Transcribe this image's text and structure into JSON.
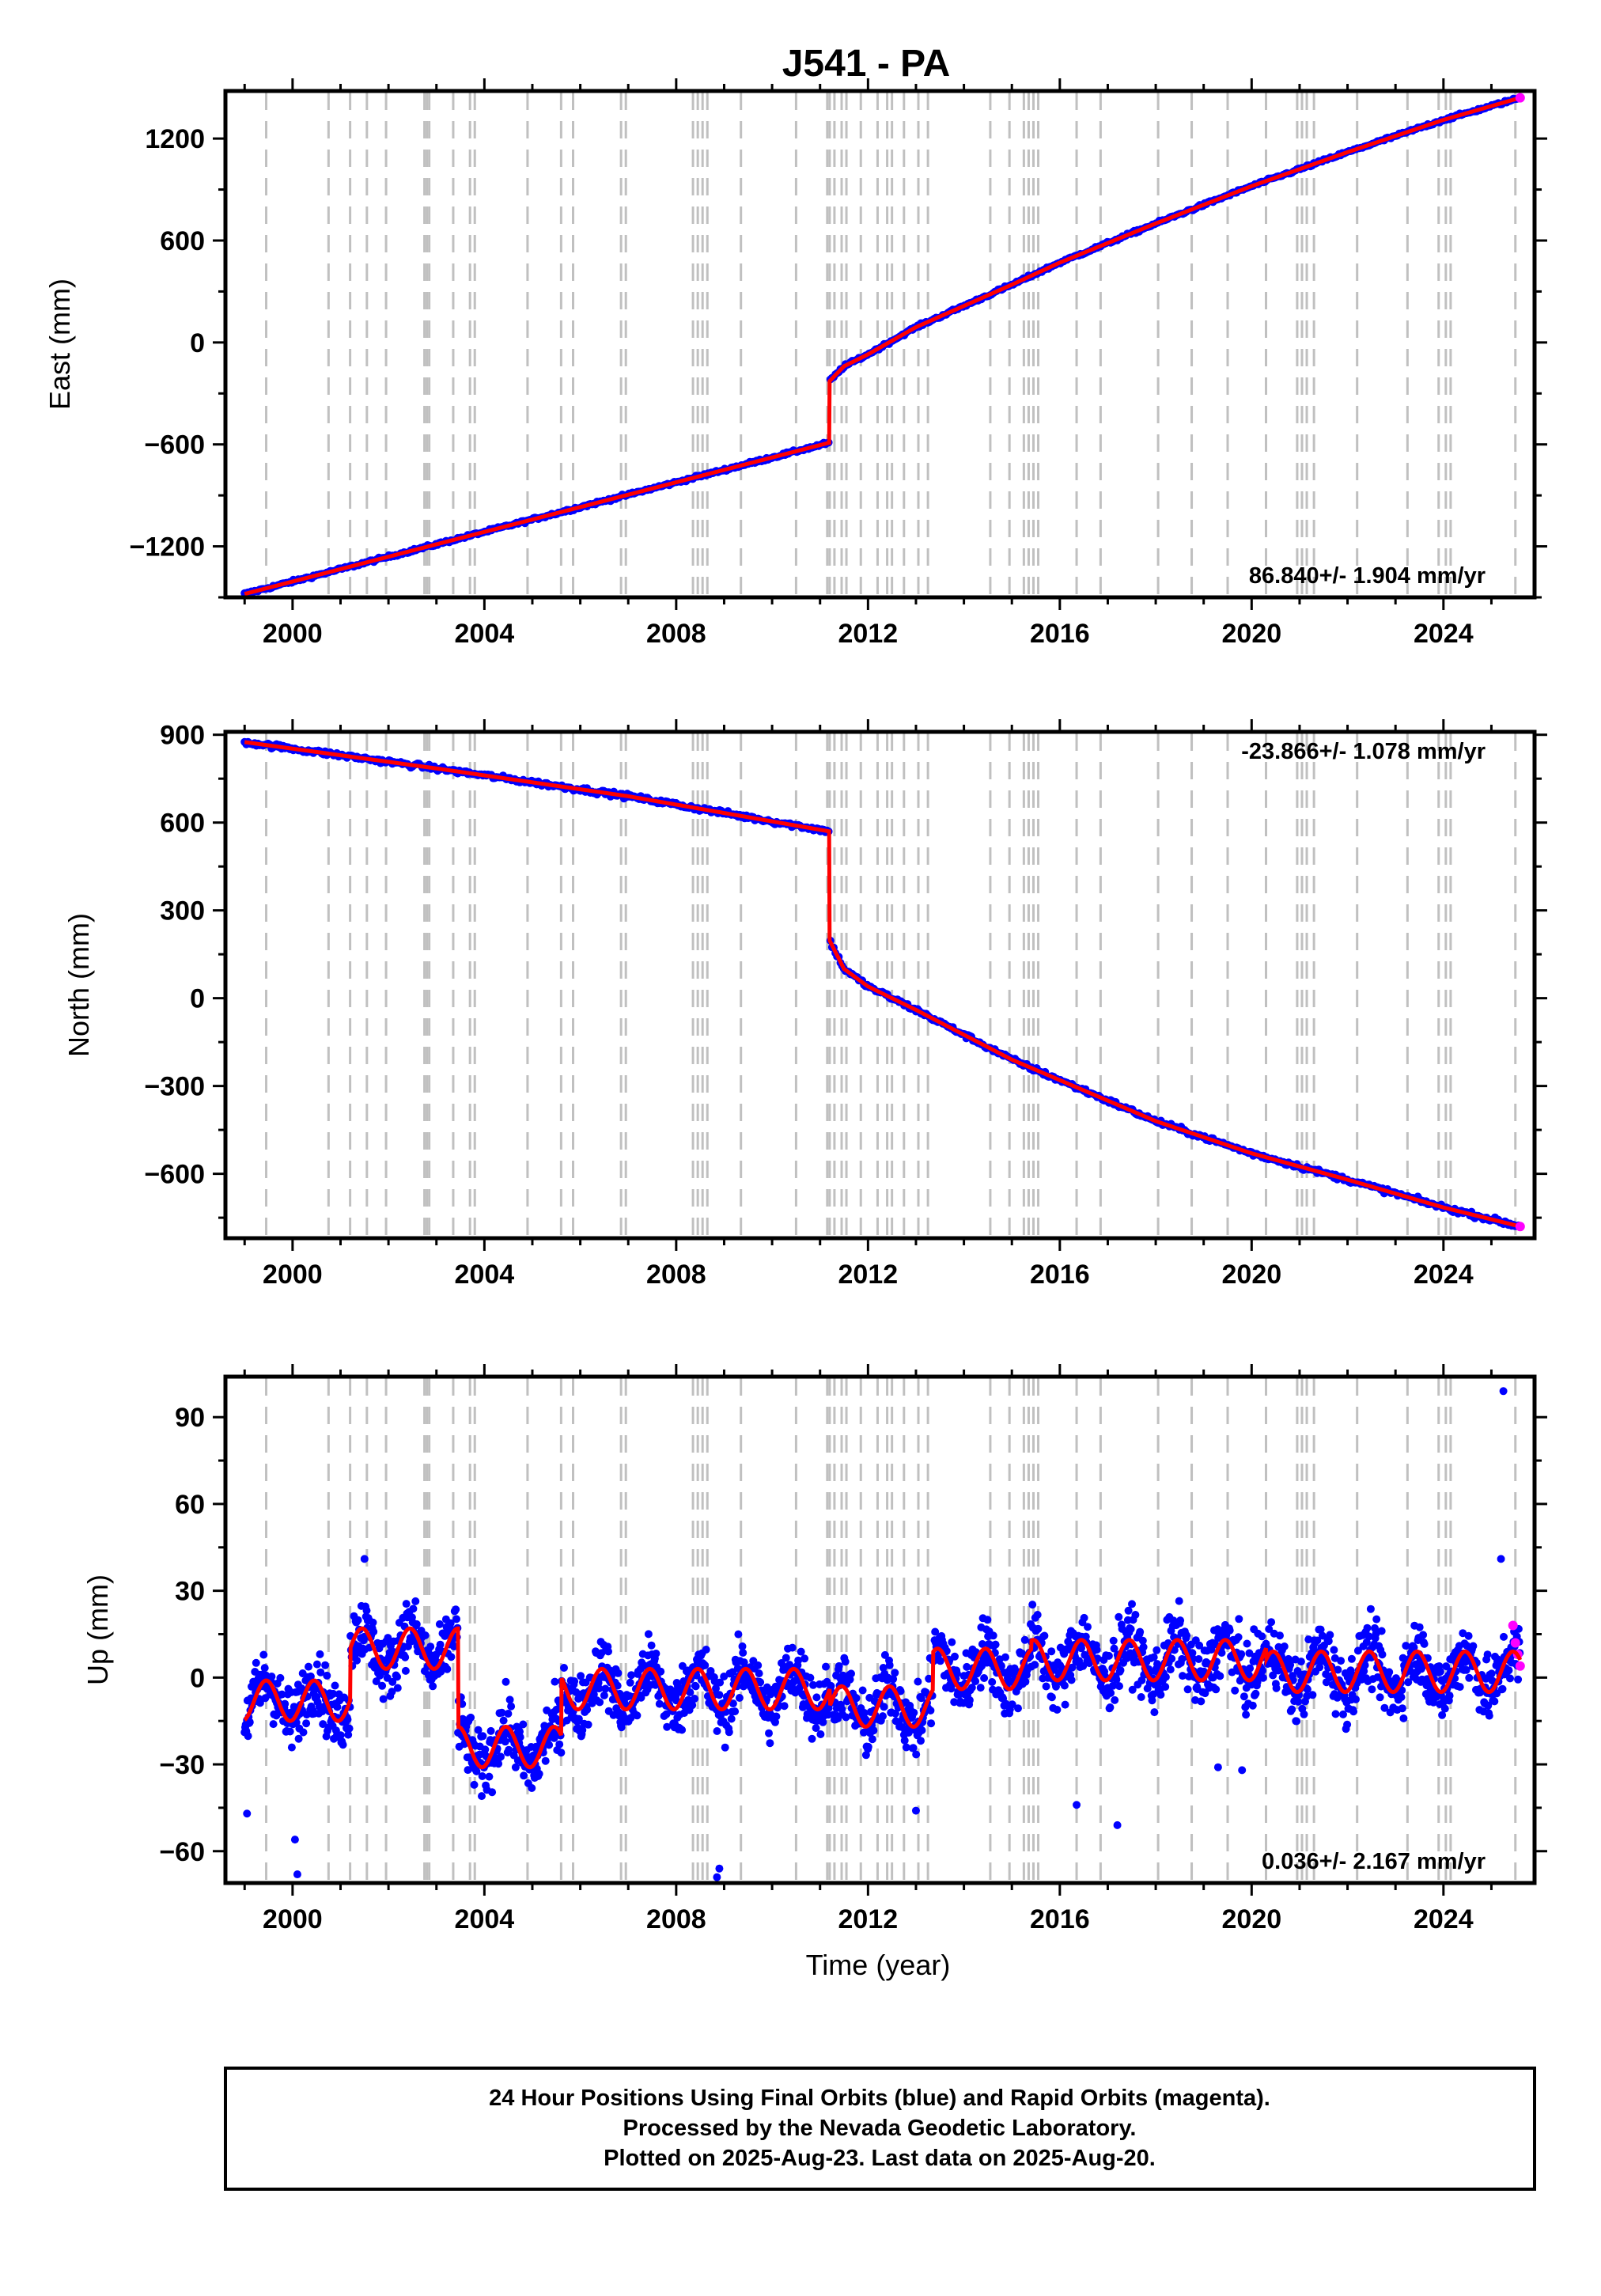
{
  "title": "J541 - PA",
  "time_axis_label": "Time (year)",
  "footer": {
    "line1": "24 Hour Positions Using Final Orbits (blue) and Rapid Orbits (magenta).",
    "line2": "Processed by the Nevada Geodetic Laboratory.",
    "line3": "Plotted on 2025-Aug-23. Last data on 2025-Aug-20."
  },
  "colors": {
    "final_orbits": "#0000ff",
    "rapid_orbits": "#ff00ff",
    "fit": "#ff0000",
    "event_lines": "#c0c0c0",
    "frame": "#000000"
  },
  "chart_data": [
    {
      "type": "scatter",
      "ylabel": "East (mm)",
      "xlim": [
        1998.6,
        2025.9
      ],
      "ylim": [
        -1500,
        1480
      ],
      "xticks": [
        "2000",
        "2004",
        "2008",
        "2012",
        "2016",
        "2020",
        "2024"
      ],
      "yticks": [
        "1200",
        "600",
        "0",
        "−600",
        "−1200"
      ],
      "rate_label": "86.840+/- 1.904 mm/yr",
      "rate_position": "bottom-right",
      "series": [
        {
          "name": "fit",
          "x": [
            1999.0,
            2011.19,
            2011.19,
            2011.5,
            2012.0,
            2013.0,
            2015.0,
            2016.0,
            2018.0,
            2020.0,
            2022.0,
            2024.0,
            2025.6
          ],
          "y": [
            -1480,
            -590,
            -230,
            -140,
            -70,
            90,
            340,
            470,
            700,
            920,
            1120,
            1310,
            1440
          ]
        }
      ]
    },
    {
      "type": "scatter",
      "ylabel": "North (mm)",
      "xlim": [
        1998.6,
        2025.9
      ],
      "ylim": [
        -820,
        910
      ],
      "xticks": [
        "2000",
        "2004",
        "2008",
        "2012",
        "2016",
        "2020",
        "2024"
      ],
      "yticks": [
        "900",
        "600",
        "300",
        "0",
        "−300",
        "−600"
      ],
      "rate_label": "-23.866+/- 1.078 mm/yr",
      "rate_position": "top-right",
      "series": [
        {
          "name": "fit",
          "x": [
            1999.0,
            2003.0,
            2007.0,
            2011.19,
            2011.19,
            2011.5,
            2012.0,
            2013.0,
            2015.0,
            2016.0,
            2018.0,
            2020.0,
            2022.0,
            2024.0,
            2025.6
          ],
          "y": [
            875,
            785,
            690,
            570,
            200,
            100,
            40,
            -40,
            -210,
            -280,
            -420,
            -530,
            -620,
            -715,
            -780
          ]
        }
      ]
    },
    {
      "type": "scatter",
      "ylabel": "Up (mm)",
      "xlim": [
        1998.6,
        2025.9
      ],
      "ylim": [
        -71,
        104
      ],
      "xticks": [
        "2000",
        "2004",
        "2008",
        "2012",
        "2016",
        "2020",
        "2024"
      ],
      "yticks": [
        "90",
        "60",
        "30",
        "0",
        "−30",
        "−60"
      ],
      "rate_label": "0.036+/- 2.167 mm/yr",
      "rate_position": "bottom-right",
      "segments": [
        {
          "x0": 1999.0,
          "x1": 2001.2,
          "base": -8
        },
        {
          "x0": 2001.2,
          "x1": 2003.45,
          "base": 10
        },
        {
          "x0": 2003.45,
          "x1": 2005.6,
          "base": -24
        },
        {
          "x0": 2005.6,
          "x1": 2011.2,
          "base": -4
        },
        {
          "x0": 2011.2,
          "x1": 2013.35,
          "base": -10
        },
        {
          "x0": 2013.35,
          "x1": 2015.4,
          "base": 3
        },
        {
          "x0": 2015.4,
          "x1": 2020.3,
          "base": 6
        },
        {
          "x0": 2020.3,
          "x1": 2025.6,
          "base": 2
        }
      ],
      "outliers": [
        {
          "x": 2025.25,
          "y": 99
        },
        {
          "x": 2001.5,
          "y": 41
        },
        {
          "x": 2025.2,
          "y": 41
        },
        {
          "x": 1999.05,
          "y": -47
        },
        {
          "x": 2000.1,
          "y": -68
        },
        {
          "x": 2000.05,
          "y": -56
        },
        {
          "x": 2008.9,
          "y": -66
        },
        {
          "x": 2008.85,
          "y": -69
        },
        {
          "x": 2013.0,
          "y": -46
        },
        {
          "x": 2016.35,
          "y": -44
        },
        {
          "x": 2017.2,
          "y": -51
        },
        {
          "x": 2019.3,
          "y": -31
        },
        {
          "x": 2019.8,
          "y": -32
        }
      ],
      "rapid_points": {
        "x": [
          2025.45,
          2025.5,
          2025.55,
          2025.6
        ],
        "y": [
          18,
          12,
          8,
          4
        ]
      }
    }
  ],
  "event_lines_x": [
    1999.45,
    2000.75,
    2001.2,
    2001.55,
    2001.95,
    2002.75,
    2002.8,
    2002.85,
    2003.35,
    2003.7,
    2003.8,
    2004.9,
    2005.6,
    2005.85,
    2006.85,
    2006.95,
    2008.35,
    2008.45,
    2008.55,
    2008.65,
    2009.35,
    2010.5,
    2011.15,
    2011.2,
    2011.3,
    2011.45,
    2011.55,
    2011.85,
    2012.2,
    2012.4,
    2012.5,
    2012.75,
    2013.05,
    2013.25,
    2014.55,
    2014.95,
    2015.25,
    2015.35,
    2015.45,
    2015.55,
    2016.35,
    2016.85,
    2018.05,
    2018.75,
    2019.5,
    2020.3,
    2020.95,
    2021.05,
    2021.15,
    2021.3,
    2022.2,
    2023.25,
    2023.9,
    2024.05,
    2024.15,
    2025.5
  ]
}
